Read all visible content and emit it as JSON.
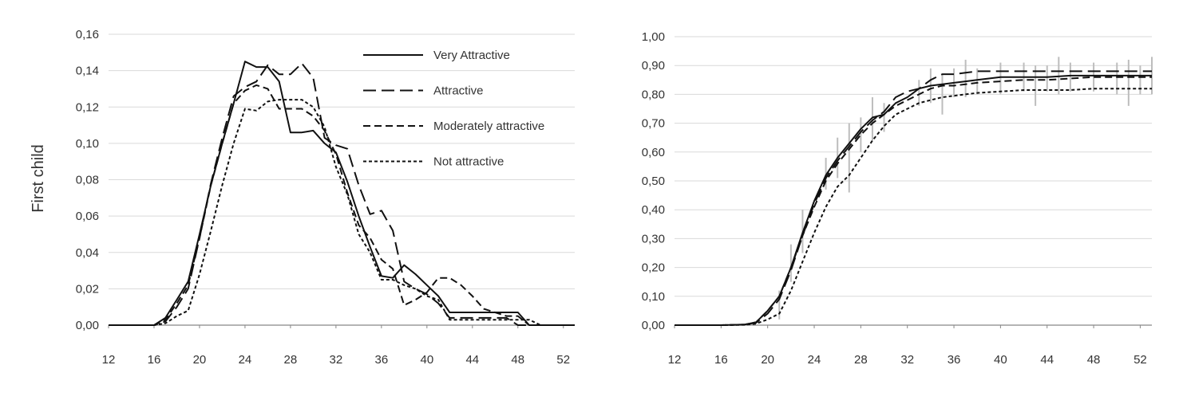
{
  "chart_data": [
    {
      "type": "line",
      "title": "",
      "xlabel": "",
      "ylabel": "First child",
      "xlim": [
        12,
        53
      ],
      "ylim": [
        0,
        0.16
      ],
      "xticks": [
        "12",
        "16",
        "20",
        "24",
        "28",
        "32",
        "36",
        "40",
        "44",
        "48",
        "52"
      ],
      "yticks": [
        "0,00",
        "0,02",
        "0,04",
        "0,06",
        "0,08",
        "0,10",
        "0,12",
        "0,14",
        "0,16"
      ],
      "grid": true,
      "legend_position": "top-right",
      "series": [
        {
          "name": "Very Attractive",
          "style": "solid",
          "x": [
            12,
            16,
            17,
            18,
            19,
            20,
            21,
            22,
            23,
            24,
            25,
            26,
            27,
            28,
            29,
            30,
            31,
            32,
            33,
            34,
            35,
            36,
            37,
            38,
            39,
            40,
            41,
            42,
            43,
            44,
            45,
            46,
            47,
            48,
            49,
            50,
            51,
            52,
            53
          ],
          "y": [
            0,
            0,
            0.004,
            0.014,
            0.024,
            0.05,
            0.077,
            0.1,
            0.122,
            0.145,
            0.142,
            0.142,
            0.134,
            0.106,
            0.106,
            0.107,
            0.1,
            0.095,
            0.079,
            0.06,
            0.043,
            0.027,
            0.026,
            0.033,
            0.028,
            0.022,
            0.016,
            0.007,
            0.007,
            0.007,
            0.007,
            0.007,
            0.007,
            0.007,
            0,
            0,
            0,
            0,
            0
          ]
        },
        {
          "name": "Attractive",
          "style": "long-dash",
          "x": [
            12,
            16,
            17,
            18,
            19,
            20,
            21,
            22,
            23,
            24,
            25,
            26,
            27,
            28,
            29,
            30,
            31,
            32,
            33,
            34,
            35,
            36,
            37,
            38,
            39,
            40,
            41,
            42,
            43,
            44,
            45,
            46,
            47,
            48,
            49,
            50,
            51,
            52,
            53
          ],
          "y": [
            0,
            0,
            0.002,
            0.01,
            0.02,
            0.048,
            0.078,
            0.103,
            0.126,
            0.131,
            0.134,
            0.143,
            0.138,
            0.138,
            0.144,
            0.136,
            0.103,
            0.099,
            0.097,
            0.077,
            0.061,
            0.063,
            0.052,
            0.024,
            0.02,
            0.017,
            0.012,
            0.004,
            0.004,
            0.004,
            0.004,
            0.004,
            0.004,
            0,
            0,
            0,
            0,
            0,
            0
          ]
        },
        {
          "name": "Moderately attractive",
          "style": "dash",
          "x": [
            12,
            16,
            17,
            18,
            19,
            20,
            21,
            22,
            23,
            24,
            25,
            26,
            27,
            28,
            29,
            30,
            31,
            32,
            33,
            34,
            35,
            36,
            37,
            38,
            39,
            40,
            41,
            42,
            43,
            44,
            45,
            46,
            47,
            48,
            49,
            50,
            51,
            52,
            53
          ],
          "y": [
            0,
            0,
            0.003,
            0.012,
            0.022,
            0.048,
            0.077,
            0.1,
            0.122,
            0.129,
            0.132,
            0.13,
            0.119,
            0.119,
            0.119,
            0.115,
            0.107,
            0.094,
            0.073,
            0.055,
            0.048,
            0.036,
            0.031,
            0.011,
            0.014,
            0.018,
            0.026,
            0.026,
            0.022,
            0.016,
            0.009,
            0.007,
            0.005,
            0.005,
            0,
            0,
            0,
            0,
            0
          ]
        },
        {
          "name": "Not attractive",
          "style": "short-dash",
          "x": [
            12,
            16,
            17,
            18,
            19,
            20,
            21,
            22,
            23,
            24,
            25,
            26,
            27,
            28,
            29,
            30,
            31,
            32,
            33,
            34,
            35,
            36,
            37,
            38,
            39,
            40,
            41,
            42,
            43,
            44,
            45,
            46,
            47,
            48,
            49,
            50,
            51,
            52,
            53
          ],
          "y": [
            0,
            0,
            0.001,
            0.005,
            0.008,
            0.028,
            0.052,
            0.077,
            0.1,
            0.119,
            0.118,
            0.123,
            0.124,
            0.124,
            0.124,
            0.12,
            0.109,
            0.087,
            0.072,
            0.05,
            0.04,
            0.025,
            0.025,
            0.022,
            0.02,
            0.016,
            0.014,
            0.003,
            0.003,
            0.003,
            0.003,
            0.003,
            0.003,
            0.003,
            0.003,
            0,
            0,
            0,
            0
          ]
        }
      ]
    },
    {
      "type": "line",
      "title": "",
      "xlabel": "",
      "ylabel": "",
      "xlim": [
        12,
        53
      ],
      "ylim": [
        0,
        1
      ],
      "xticks": [
        "12",
        "16",
        "20",
        "24",
        "28",
        "32",
        "36",
        "40",
        "44",
        "48",
        "52"
      ],
      "yticks": [
        "0,00",
        "0,10",
        "0,20",
        "0,30",
        "0,40",
        "0,50",
        "0,60",
        "0,70",
        "0,80",
        "0,90",
        "1,00"
      ],
      "grid": true,
      "legend_position": "none",
      "series": [
        {
          "name": "Very Attractive",
          "style": "solid",
          "x": [
            12,
            16,
            18,
            19,
            20,
            21,
            22,
            23,
            24,
            25,
            26,
            27,
            28,
            29,
            30,
            31,
            32,
            33,
            34,
            35,
            36,
            37,
            38,
            40,
            42,
            44,
            46,
            48,
            50,
            52,
            53
          ],
          "y": [
            0,
            0,
            0.002,
            0.01,
            0.05,
            0.1,
            0.2,
            0.32,
            0.43,
            0.52,
            0.58,
            0.63,
            0.68,
            0.72,
            0.73,
            0.77,
            0.79,
            0.82,
            0.83,
            0.835,
            0.84,
            0.845,
            0.85,
            0.86,
            0.86,
            0.86,
            0.865,
            0.865,
            0.865,
            0.865,
            0.865
          ]
        },
        {
          "name": "Attractive",
          "style": "long-dash",
          "x": [
            12,
            16,
            18,
            19,
            20,
            21,
            22,
            23,
            24,
            25,
            26,
            27,
            28,
            29,
            30,
            31,
            32,
            33,
            34,
            35,
            36,
            37,
            38,
            40,
            42,
            44,
            46,
            48,
            50,
            52,
            53
          ],
          "y": [
            0,
            0,
            0.002,
            0.008,
            0.04,
            0.09,
            0.19,
            0.31,
            0.42,
            0.51,
            0.57,
            0.62,
            0.67,
            0.71,
            0.74,
            0.79,
            0.81,
            0.82,
            0.85,
            0.87,
            0.87,
            0.875,
            0.88,
            0.88,
            0.88,
            0.88,
            0.88,
            0.88,
            0.88,
            0.88,
            0.88
          ]
        },
        {
          "name": "Moderately attractive",
          "style": "dash",
          "x": [
            12,
            16,
            18,
            19,
            20,
            21,
            22,
            23,
            24,
            25,
            26,
            27,
            28,
            29,
            30,
            31,
            32,
            33,
            34,
            35,
            36,
            37,
            38,
            40,
            42,
            44,
            46,
            48,
            50,
            52,
            53
          ],
          "y": [
            0,
            0,
            0.002,
            0.01,
            0.05,
            0.1,
            0.2,
            0.31,
            0.41,
            0.5,
            0.56,
            0.61,
            0.66,
            0.7,
            0.73,
            0.76,
            0.78,
            0.8,
            0.82,
            0.83,
            0.83,
            0.835,
            0.84,
            0.845,
            0.85,
            0.85,
            0.855,
            0.86,
            0.86,
            0.86,
            0.86
          ]
        },
        {
          "name": "Not attractive",
          "style": "short-dash",
          "x": [
            12,
            16,
            18,
            19,
            20,
            21,
            22,
            23,
            24,
            25,
            26,
            27,
            28,
            29,
            30,
            31,
            32,
            33,
            34,
            35,
            36,
            37,
            38,
            40,
            42,
            44,
            46,
            48,
            50,
            52,
            53
          ],
          "y": [
            0,
            0,
            0.001,
            0.005,
            0.02,
            0.04,
            0.12,
            0.22,
            0.32,
            0.41,
            0.48,
            0.52,
            0.58,
            0.64,
            0.69,
            0.73,
            0.75,
            0.77,
            0.78,
            0.79,
            0.795,
            0.8,
            0.805,
            0.81,
            0.815,
            0.815,
            0.815,
            0.82,
            0.82,
            0.82,
            0.82
          ]
        }
      ],
      "error_bars": {
        "x": [
          21,
          22,
          23,
          25,
          26,
          27,
          28,
          29,
          30,
          33,
          34,
          35,
          36,
          37,
          38,
          40,
          42,
          43,
          44,
          45,
          46,
          48,
          50,
          51,
          52,
          53
        ],
        "low": [
          0.02,
          0.15,
          0.25,
          0.47,
          0.51,
          0.46,
          0.6,
          0.64,
          0.67,
          0.76,
          0.77,
          0.73,
          0.79,
          0.79,
          0.8,
          0.8,
          0.81,
          0.76,
          0.81,
          0.8,
          0.81,
          0.81,
          0.8,
          0.76,
          0.8,
          0.8
        ],
        "high": [
          0.12,
          0.28,
          0.4,
          0.58,
          0.65,
          0.7,
          0.72,
          0.79,
          0.77,
          0.85,
          0.89,
          0.87,
          0.89,
          0.92,
          0.89,
          0.91,
          0.91,
          0.9,
          0.9,
          0.93,
          0.91,
          0.91,
          0.91,
          0.92,
          0.9,
          0.93
        ]
      }
    }
  ]
}
